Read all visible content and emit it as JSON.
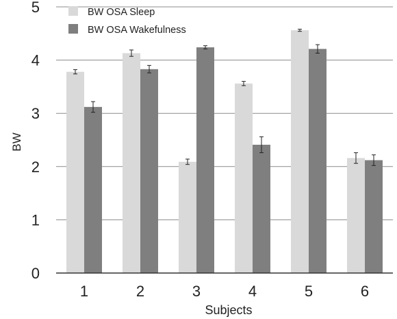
{
  "chart_data": {
    "type": "bar",
    "categories": [
      "1",
      "2",
      "3",
      "4",
      "5",
      "6"
    ],
    "series": [
      {
        "name": "BW OSA Sleep",
        "color": "#d9d9d9",
        "values": [
          3.78,
          4.13,
          2.09,
          3.56,
          4.56,
          2.16
        ],
        "errors": [
          0.04,
          0.06,
          0.05,
          0.04,
          0.02,
          0.1
        ]
      },
      {
        "name": "BW OSA Wakefulness",
        "color": "#7f7f7f",
        "values": [
          3.12,
          3.83,
          4.24,
          2.41,
          4.21,
          2.12
        ],
        "errors": [
          0.1,
          0.07,
          0.03,
          0.15,
          0.08,
          0.1
        ]
      }
    ],
    "xlabel": "Subjects",
    "ylabel": "BW",
    "ylim": [
      0,
      5
    ],
    "yticks": [
      "0",
      "1",
      "2",
      "3",
      "4",
      "5"
    ],
    "grid": true,
    "legend_position": "top-left"
  }
}
